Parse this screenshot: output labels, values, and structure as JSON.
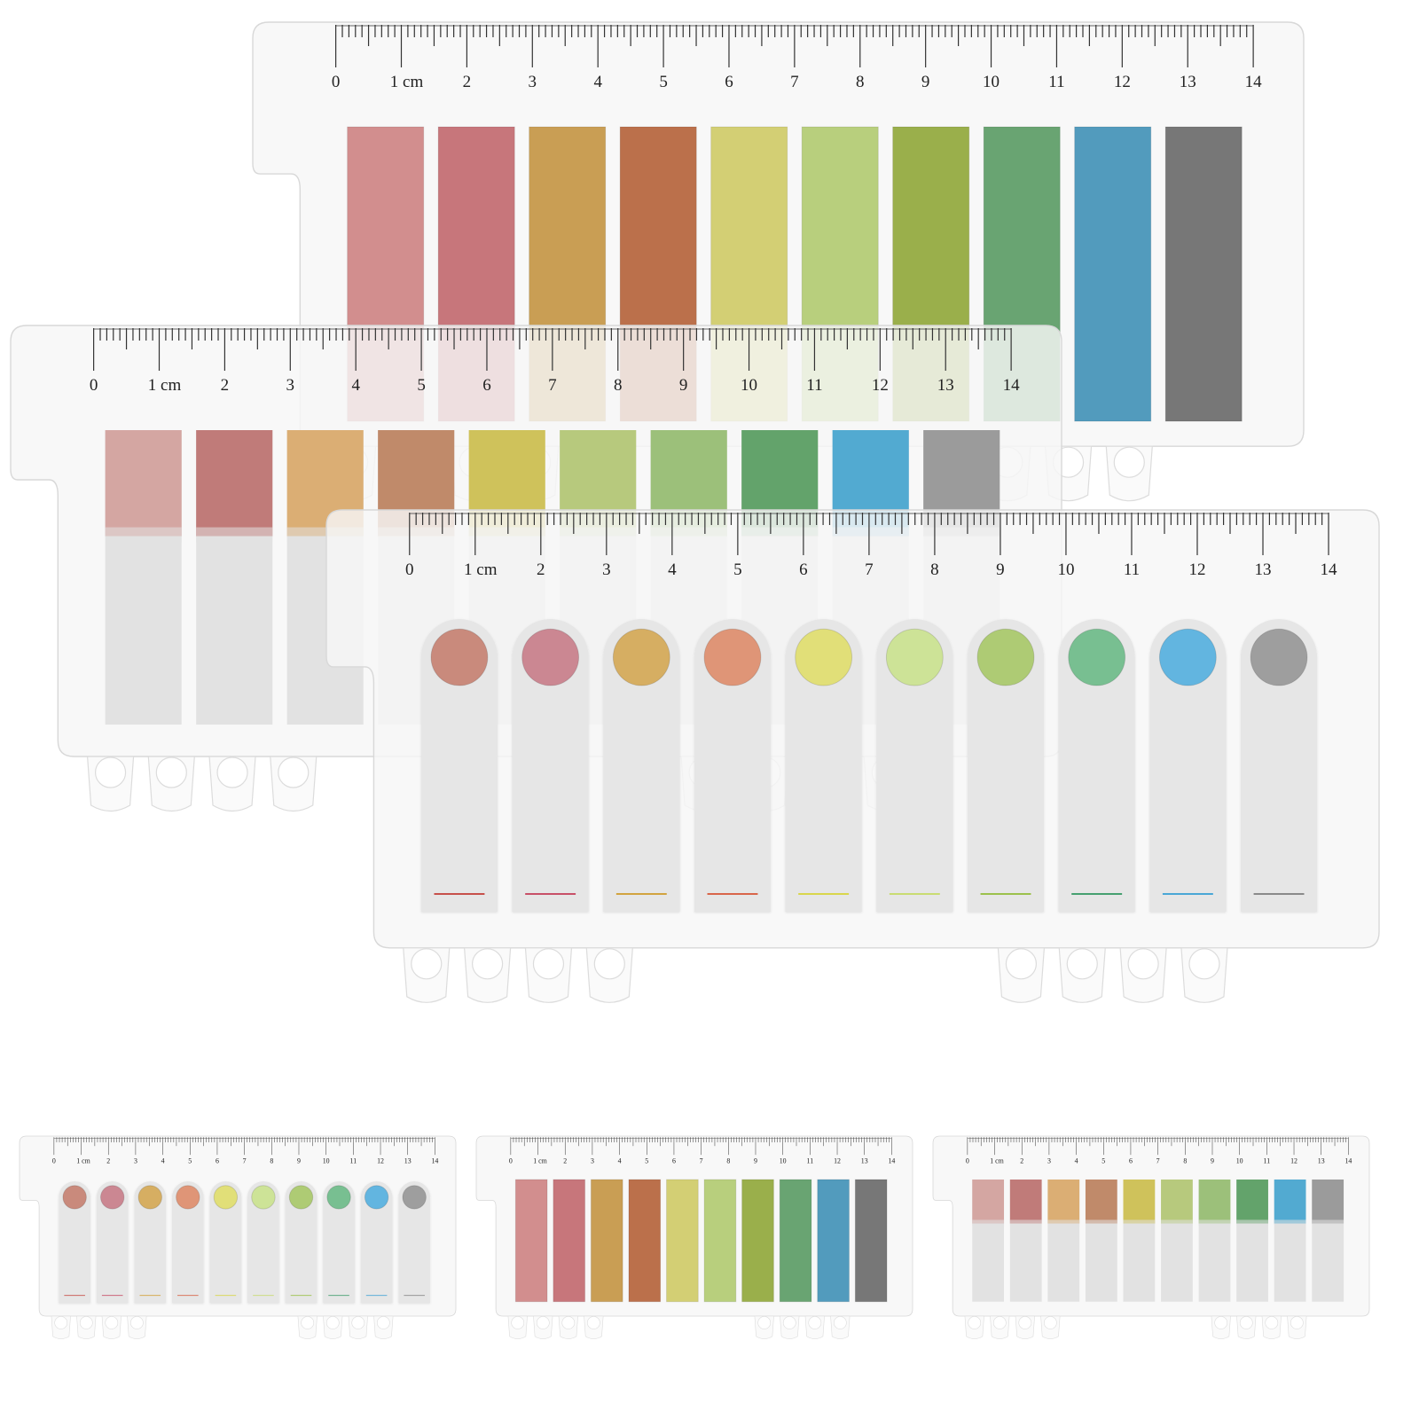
{
  "ruler": {
    "labels": [
      "0",
      "1 cm",
      "2",
      "3",
      "4",
      "5",
      "6",
      "7",
      "8",
      "9",
      "10",
      "11",
      "12",
      "13",
      "14"
    ]
  },
  "palettes": {
    "rect_tabs": [
      "#d28e8e",
      "#c7767b",
      "#c99e54",
      "#bb704b",
      "#d3cf74",
      "#b8cf7d",
      "#9aaf4b",
      "#69a472",
      "#529bbd",
      "#777777"
    ],
    "fade_tabs": [
      "#d4a6a2",
      "#c07b79",
      "#dbae74",
      "#c08a6a",
      "#cfc25b",
      "#b7c97d",
      "#9cc07a",
      "#63a36b",
      "#52aad1",
      "#9b9b9b"
    ],
    "dot_tabs": [
      "#c98a7c",
      "#cb8792",
      "#d6ae62",
      "#df9577",
      "#e1df78",
      "#cde397",
      "#aecb74",
      "#78bf91",
      "#62b5e0",
      "#9e9e9e"
    ],
    "dot_lines": [
      "#c7504b",
      "#c85068",
      "#d2a33f",
      "#d9664a",
      "#d9d64c",
      "#c9dc72",
      "#9cc14c",
      "#46a070",
      "#4aa7d6",
      "#8a8a8a"
    ]
  },
  "sheets": [
    {
      "name": "rect-tab-sheet-back",
      "style": "rect"
    },
    {
      "name": "fade-tab-sheet-middle",
      "style": "fade"
    },
    {
      "name": "dot-tab-sheet-front",
      "style": "dot"
    },
    {
      "name": "thumbnail-dot-tab-sheet",
      "style": "dot"
    },
    {
      "name": "thumbnail-rect-tab-sheet",
      "style": "rect"
    },
    {
      "name": "thumbnail-fade-tab-sheet",
      "style": "fade"
    }
  ]
}
